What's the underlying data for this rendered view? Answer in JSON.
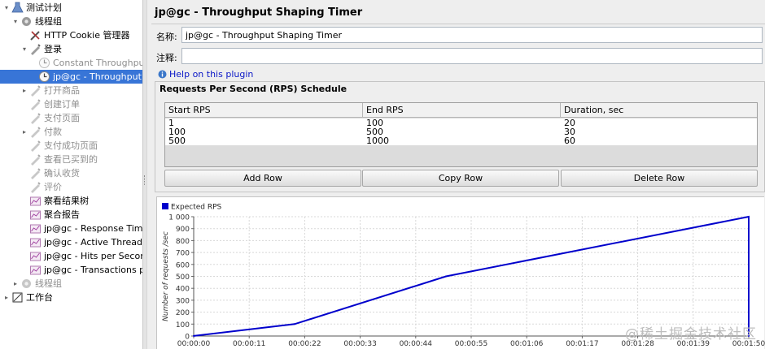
{
  "tree": {
    "items": [
      {
        "label": "测试计划",
        "icon": "test-plan-icon",
        "depth": 0,
        "toggle": "▾",
        "state": "normal"
      },
      {
        "label": "线程组",
        "icon": "thread-group-icon",
        "depth": 1,
        "toggle": "▾",
        "state": "normal"
      },
      {
        "label": "HTTP Cookie 管理器",
        "icon": "config-element-icon",
        "depth": 2,
        "toggle": "",
        "state": "normal"
      },
      {
        "label": "登录",
        "icon": "sampler-icon",
        "depth": 2,
        "toggle": "▾",
        "state": "normal"
      },
      {
        "label": "Constant Throughput Timer",
        "icon": "timer-icon",
        "depth": 3,
        "toggle": "",
        "state": "disabled"
      },
      {
        "label": "jp@gc - Throughput Shaping Timer",
        "icon": "timer-icon",
        "depth": 3,
        "toggle": "",
        "state": "selected"
      },
      {
        "label": "打开商品",
        "icon": "sampler-icon",
        "depth": 2,
        "toggle": "▸",
        "state": "disabled"
      },
      {
        "label": "创建订单",
        "icon": "sampler-icon",
        "depth": 2,
        "toggle": "",
        "state": "disabled"
      },
      {
        "label": "支付页面",
        "icon": "sampler-icon",
        "depth": 2,
        "toggle": "",
        "state": "disabled"
      },
      {
        "label": "付款",
        "icon": "sampler-icon",
        "depth": 2,
        "toggle": "▸",
        "state": "disabled"
      },
      {
        "label": "支付成功页面",
        "icon": "sampler-icon",
        "depth": 2,
        "toggle": "",
        "state": "disabled"
      },
      {
        "label": "查看已买到的",
        "icon": "sampler-icon",
        "depth": 2,
        "toggle": "",
        "state": "disabled"
      },
      {
        "label": "确认收货",
        "icon": "sampler-icon",
        "depth": 2,
        "toggle": "",
        "state": "disabled"
      },
      {
        "label": "评价",
        "icon": "sampler-icon",
        "depth": 2,
        "toggle": "",
        "state": "disabled"
      },
      {
        "label": "察看结果树",
        "icon": "listener-icon",
        "depth": 2,
        "toggle": "",
        "state": "normal"
      },
      {
        "label": "聚合报告",
        "icon": "listener-icon",
        "depth": 2,
        "toggle": "",
        "state": "normal"
      },
      {
        "label": "jp@gc - Response Times Over Time",
        "icon": "listener-icon",
        "depth": 2,
        "toggle": "",
        "state": "normal"
      },
      {
        "label": "jp@gc - Active Threads Over Time",
        "icon": "listener-icon",
        "depth": 2,
        "toggle": "",
        "state": "normal"
      },
      {
        "label": "jp@gc - Hits per Second",
        "icon": "listener-icon",
        "depth": 2,
        "toggle": "",
        "state": "normal"
      },
      {
        "label": "jp@gc - Transactions per Second",
        "icon": "listener-icon",
        "depth": 2,
        "toggle": "",
        "state": "normal"
      },
      {
        "label": "线程组",
        "icon": "thread-group-icon",
        "depth": 1,
        "toggle": "▸",
        "state": "disabled"
      },
      {
        "label": "工作台",
        "icon": "workbench-icon",
        "depth": 0,
        "toggle": "▸",
        "state": "normal"
      }
    ]
  },
  "panel": {
    "title": "jp@gc - Throughput Shaping Timer",
    "name_label": "名称:",
    "name_value": "jp@gc - Throughput Shaping Timer",
    "comment_label": "注释:",
    "comment_value": "",
    "help_link": "Help on this plugin"
  },
  "schedule": {
    "title": "Requests Per Second (RPS) Schedule",
    "columns": [
      "Start RPS",
      "End RPS",
      "Duration, sec"
    ],
    "rows": [
      [
        "1",
        "100",
        "20"
      ],
      [
        "100",
        "500",
        "30"
      ],
      [
        "500",
        "1000",
        "60"
      ]
    ],
    "buttons": {
      "add": "Add Row",
      "copy": "Copy Row",
      "delete": "Delete Row"
    }
  },
  "chart_data": {
    "type": "line",
    "title": "",
    "legend": "Expected RPS",
    "legend_position": "top-left",
    "ylabel": "Number of requests /sec",
    "xlabel": "",
    "series": [
      {
        "name": "Expected RPS",
        "color": "#0000cc",
        "x": [
          "00:00:00",
          "00:00:20",
          "00:00:50",
          "00:01:50",
          "00:01:50"
        ],
        "y": [
          1,
          100,
          500,
          1000,
          0
        ]
      }
    ],
    "x_ticks": [
      "00:00:00",
      "00:00:11",
      "00:00:22",
      "00:00:33",
      "00:00:44",
      "00:00:55",
      "00:01:06",
      "00:01:17",
      "00:01:28",
      "00:01:39",
      "00:01:50"
    ],
    "y_ticks": [
      "0",
      "100",
      "200",
      "300",
      "400",
      "500",
      "600",
      "700",
      "800",
      "900",
      "1 000"
    ],
    "xlim_seconds": [
      0,
      110
    ],
    "ylim": [
      0,
      1000
    ],
    "grid": true
  },
  "watermark": "@稀土掘金技术社区",
  "colors": {
    "selection": "#3875d7",
    "series": "#0000cc",
    "link": "#0b18c7",
    "panel_bg": "#eeeeee"
  }
}
